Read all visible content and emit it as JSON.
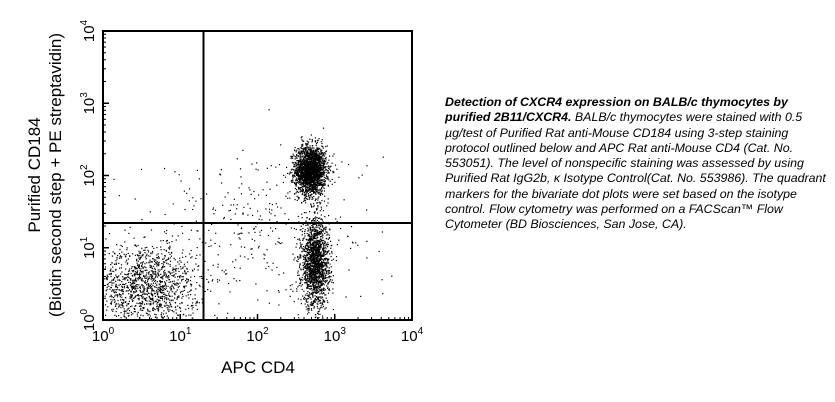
{
  "chart_data": {
    "type": "scatter",
    "plot_kind": "flow cytometry bivariate dot plot with quadrant markers",
    "x_scale": "log",
    "y_scale": "log",
    "xlim": [
      1,
      10000
    ],
    "ylim": [
      1,
      10000
    ],
    "xlabel": "APC CD4",
    "ylabel_line1": "Purified CD184",
    "ylabel_line2": "(Biotin second step + PE streptavidin)",
    "x_ticks": [
      {
        "base": "10",
        "exp": "0"
      },
      {
        "base": "10",
        "exp": "1"
      },
      {
        "base": "10",
        "exp": "2"
      },
      {
        "base": "10",
        "exp": "3"
      },
      {
        "base": "10",
        "exp": "4"
      }
    ],
    "y_ticks": [
      {
        "base": "10",
        "exp": "0"
      },
      {
        "base": "10",
        "exp": "1"
      },
      {
        "base": "10",
        "exp": "2"
      },
      {
        "base": "10",
        "exp": "3"
      },
      {
        "base": "10",
        "exp": "4"
      }
    ],
    "quadrant_markers": {
      "x": 20,
      "y": 22
    },
    "grid": false,
    "legend": "none",
    "point_color": "#000000",
    "populations": [
      {
        "x_center": 480,
        "y_center": 120,
        "x_log_sd": 0.1,
        "y_log_sd": 0.17,
        "count": 2200,
        "description": "dense cluster, upper right quadrant"
      },
      {
        "x_center": 550,
        "y_center": 6,
        "x_log_sd": 0.09,
        "y_log_sd": 0.3,
        "count": 1700,
        "description": "lower right quadrant"
      },
      {
        "x_center": 3.5,
        "y_center": 3,
        "x_log_sd": 0.35,
        "y_log_sd": 0.3,
        "count": 1400,
        "description": "lower left quadrant"
      },
      {
        "x_center": 100,
        "y_center": 20,
        "x_log_sd": 0.75,
        "y_log_sd": 0.55,
        "count": 320,
        "description": "sparse scatter"
      }
    ]
  },
  "caption": {
    "title": "Detection of CXCR4 expression on BALB/c thymocytes by purified 2B11/CXCR4.",
    "body": " BALB/c thymocytes were stained with 0.5 µg/test of Purified Rat anti-Mouse CD184 using 3-step staining protocol outlined below and APC Rat anti-Mouse CD4 (Cat. No. 553051). The level of nonspecific staining was assessed by using Purified Rat IgG2b, κ Isotype Control(Cat. No. 553986). The quadrant markers for the bivariate dot plots were set based on the isotype control. Flow cytometry was performed on a FACScan™ Flow Cytometer (BD Biosciences, San Jose, CA)."
  }
}
